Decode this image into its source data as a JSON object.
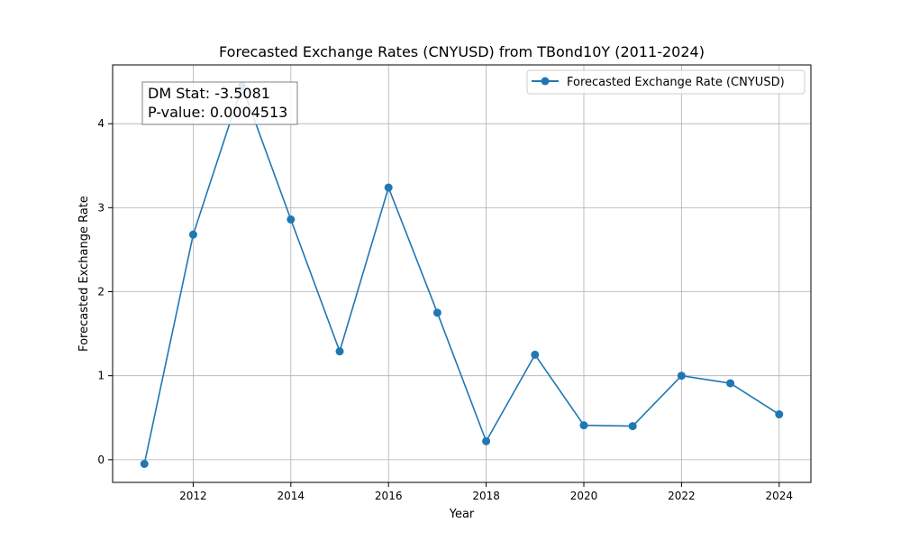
{
  "chart_data": {
    "type": "line",
    "title": "Forecasted Exchange Rates (CNYUSD) from TBond10Y (2011-2024)",
    "xlabel": "Year",
    "ylabel": "Forecasted Exchange Rate",
    "xlim": [
      2010.35,
      2024.65
    ],
    "ylim": [
      -0.27,
      4.7
    ],
    "xticks": [
      2012,
      2014,
      2016,
      2018,
      2020,
      2022,
      2024
    ],
    "yticks": [
      0,
      1,
      2,
      3,
      4
    ],
    "grid": true,
    "legend_position": "top-right",
    "series": [
      {
        "name": "Forecasted Exchange Rate (CNYUSD)",
        "color": "#1f77b4",
        "marker": "circle",
        "x": [
          2011,
          2012,
          2013,
          2014,
          2015,
          2016,
          2017,
          2018,
          2019,
          2020,
          2021,
          2022,
          2023,
          2024
        ],
        "y": [
          -0.05,
          2.68,
          4.45,
          2.86,
          1.29,
          3.24,
          1.75,
          0.22,
          1.25,
          0.41,
          0.4,
          1.0,
          0.91,
          0.54
        ]
      }
    ],
    "annotations": [
      "DM Stat: -3.5081",
      "P-value: 0.0004513"
    ]
  }
}
